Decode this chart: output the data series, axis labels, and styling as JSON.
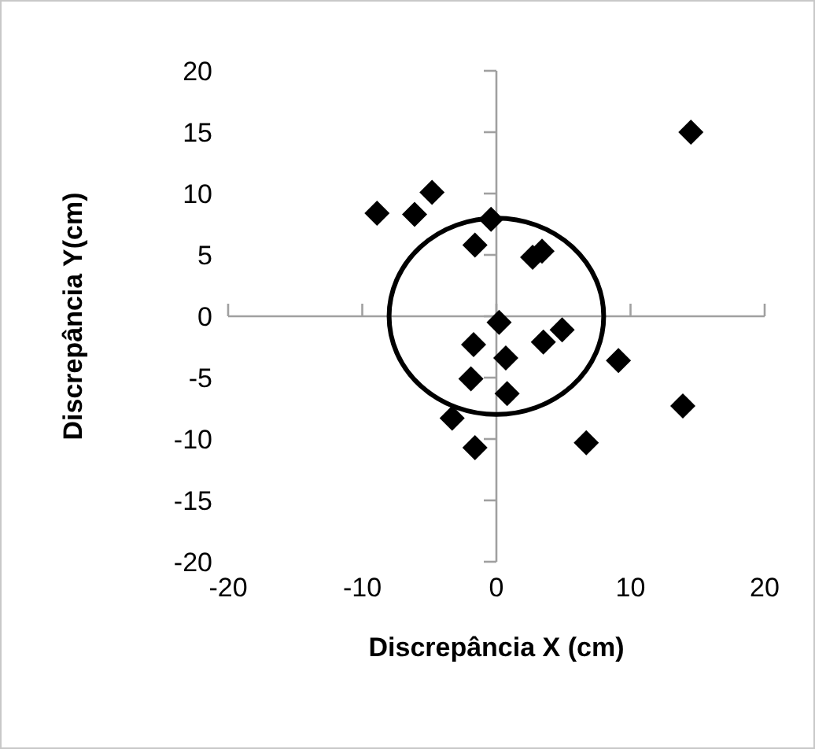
{
  "chart_data": {
    "type": "scatter",
    "xlabel": "Discrepância X (cm)",
    "ylabel": "Discrepância Y(cm)",
    "xlim": [
      -20,
      20
    ],
    "ylim": [
      -20,
      20
    ],
    "xticks": [
      -20,
      -10,
      0,
      10,
      20
    ],
    "yticks": [
      -20,
      -15,
      -10,
      -5,
      0,
      5,
      10,
      15,
      20
    ],
    "series": [
      {
        "color": "#000000",
        "marker": "diamond",
        "x": [
          14.5,
          -4.8,
          -8.9,
          -6.1,
          -0.4,
          -1.6,
          2.7,
          3.4,
          0.2,
          4.9,
          3.5,
          -1.7,
          0.7,
          -1.9,
          0.8,
          9.1,
          -3.3,
          -1.6,
          6.7,
          13.9
        ],
        "values": [
          15.0,
          10.1,
          8.4,
          8.3,
          7.9,
          5.8,
          4.8,
          5.3,
          -0.5,
          -1.1,
          -2.1,
          -2.3,
          -3.4,
          -5.1,
          -6.3,
          -3.6,
          -8.3,
          -10.7,
          -10.3,
          -7.3
        ]
      }
    ]
  }
}
